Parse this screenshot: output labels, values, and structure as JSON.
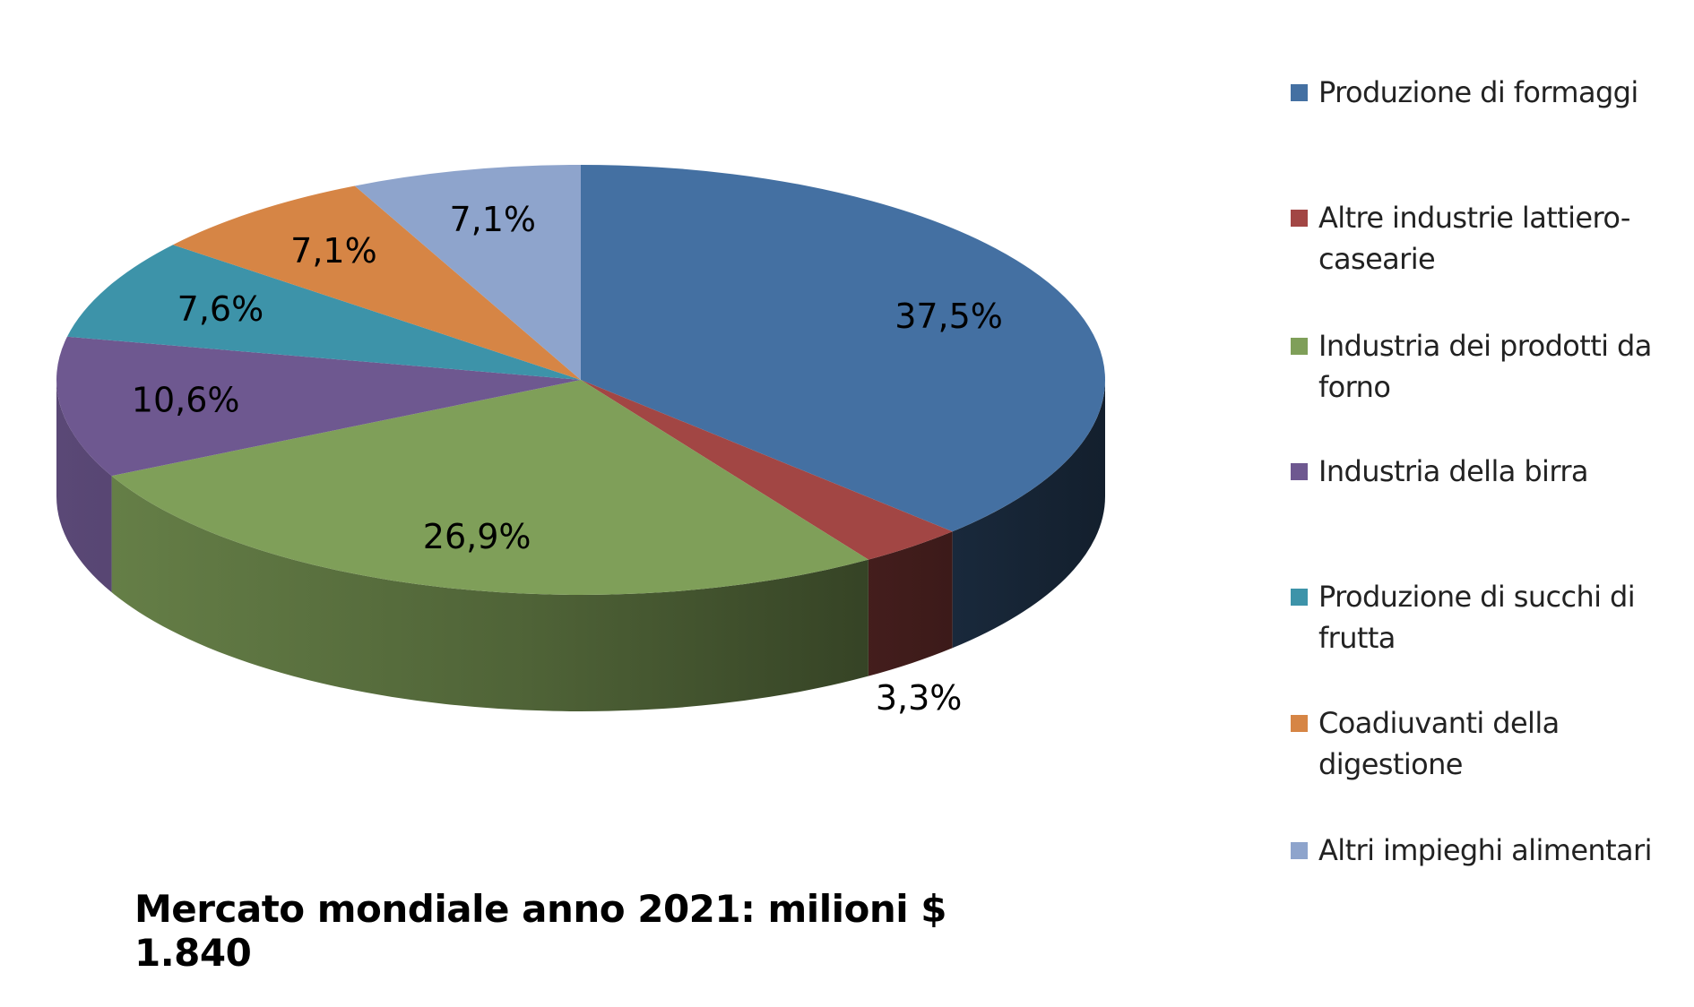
{
  "chart_data": {
    "type": "pie",
    "three_d": true,
    "title": "",
    "caption": "Mercato mondiale anno 2021: milioni $ 1.840",
    "legend_position": "right",
    "slices": [
      {
        "name": "Produzione di formaggi",
        "value": 37.5,
        "label": "37,5%",
        "color": "#4470a2"
      },
      {
        "name": "Altre industrie lattiero-casearie",
        "value": 3.3,
        "label": "3,3%",
        "color": "#a24644"
      },
      {
        "name": "Industria dei prodotti da forno",
        "value": 26.9,
        "label": "26,9%",
        "color": "#7f9f59"
      },
      {
        "name": "Industria della birra",
        "value": 10.6,
        "label": "10,6%",
        "color": "#6e5890"
      },
      {
        "name": "Produzione di succhi di frutta",
        "value": 7.6,
        "label": "7,6%",
        "color": "#3d93a9"
      },
      {
        "name": "Coadiuvanti della digestione",
        "value": 7.1,
        "label": "7,1%",
        "color": "#d68545"
      },
      {
        "name": "Altri impieghi alimentari",
        "value": 7.1,
        "label": "7,1%",
        "color": "#8ea4cc"
      }
    ]
  },
  "legend": [
    {
      "label": "Produzione di formaggi",
      "color": "#4470a2"
    },
    {
      "label": "Altre industrie lattiero-casearie",
      "color": "#a24644"
    },
    {
      "label": "Industria dei prodotti da forno",
      "color": "#7f9f59"
    },
    {
      "label": "Industria della birra",
      "color": "#6e5890"
    },
    {
      "label": "Produzione di succhi di frutta",
      "color": "#3d93a9"
    },
    {
      "label": "Coadiuvanti della digestione",
      "color": "#d68545"
    },
    {
      "label": "Altri impieghi alimentari",
      "color": "#8ea4cc"
    }
  ]
}
